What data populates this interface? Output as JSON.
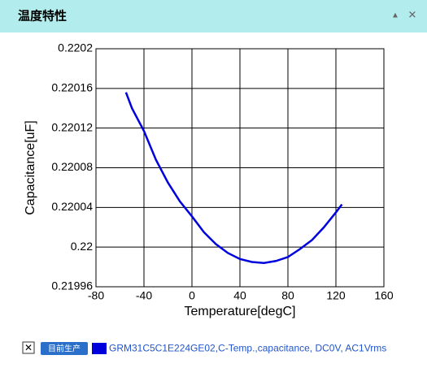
{
  "panel_title": "温度特性",
  "controls": {
    "collapse": "▲",
    "close": "✕",
    "remove": "✕"
  },
  "status_badge": "目前生产",
  "chart_data": {
    "type": "line",
    "xlabel": "Temperature[degC]",
    "ylabel": "Capacitance[uF]",
    "x": [
      -55,
      -50,
      -40,
      -30,
      -20,
      -10,
      0,
      10,
      20,
      30,
      40,
      50,
      60,
      70,
      80,
      90,
      100,
      110,
      120,
      125
    ],
    "series": [
      {
        "name": "GRM31C5C1E224GE02,C-Temp.,capacitance, DC0V, AC1Vrms",
        "color": "#0000dd",
        "values": [
          0.220156,
          0.22014,
          0.220117,
          0.220088,
          0.220065,
          0.220046,
          0.220031,
          0.220015,
          0.220003,
          0.219994,
          0.219988,
          0.219985,
          0.219984,
          0.219986,
          0.21999,
          0.219998,
          0.220007,
          0.22002,
          0.220035,
          0.220043
        ]
      }
    ],
    "xlim": [
      -80,
      160
    ],
    "xticks": [
      -80,
      -40,
      0,
      40,
      80,
      120,
      160
    ],
    "ylim": [
      0.21996,
      0.2202
    ],
    "yticks": [
      0.21996,
      0.22,
      0.22004,
      0.22008,
      0.22012,
      0.22016,
      0.2202
    ],
    "grid": true
  }
}
